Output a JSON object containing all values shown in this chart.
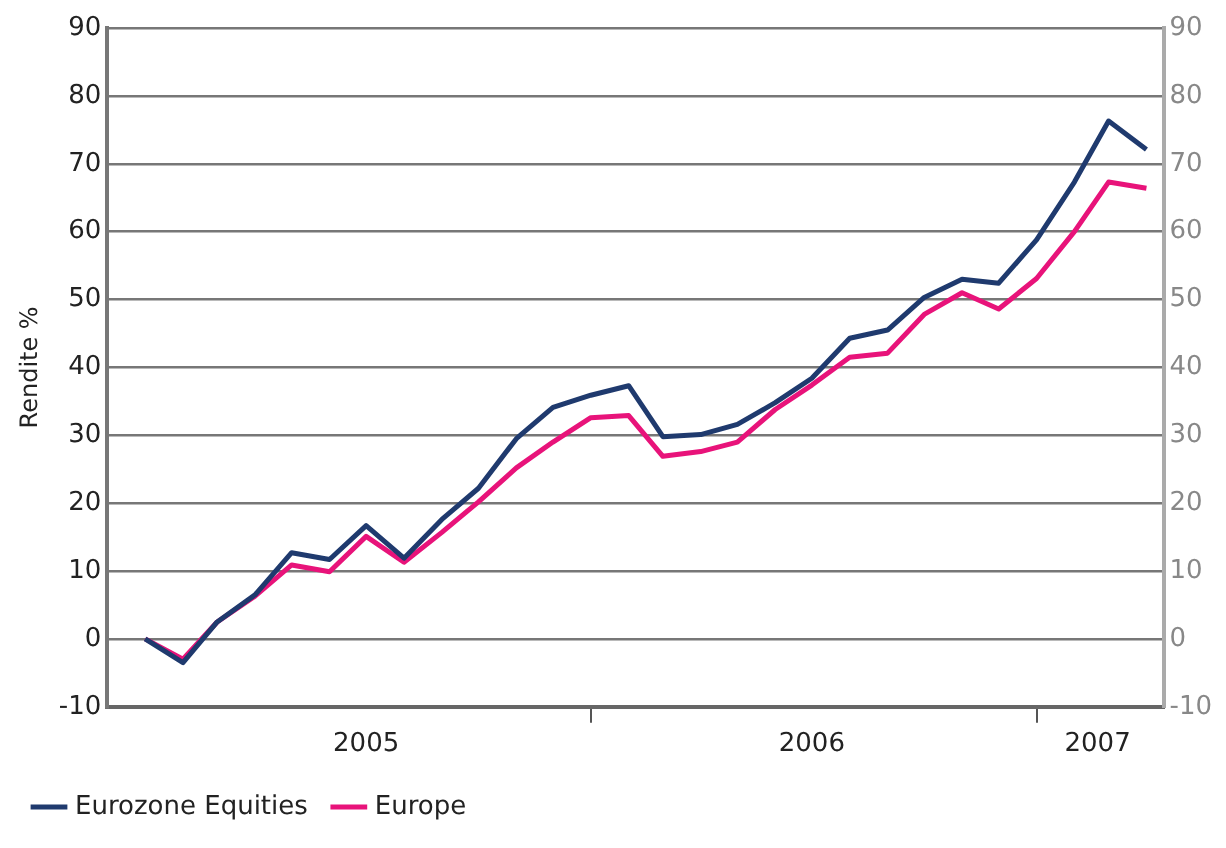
{
  "chart_data": {
    "type": "line",
    "ylabel": "Rendite %",
    "x": [
      "2005-01",
      "2005-02",
      "2005-03",
      "2005-04",
      "2005-05",
      "2005-06",
      "2005-07",
      "2005-08",
      "2005-09",
      "2005-10",
      "2005-11",
      "2005-12",
      "2006-01",
      "2006-02",
      "2006-03",
      "2006-04",
      "2006-05",
      "2006-06",
      "2006-07",
      "2006-08",
      "2006-09",
      "2006-10",
      "2006-11",
      "2006-12",
      "2007-01",
      "2007-02",
      "2007-03",
      "2007-04"
    ],
    "xlim": [
      "2004-12-01",
      "2007-04-15"
    ],
    "xticks": [
      {
        "value": "2006-01",
        "label": null
      },
      {
        "value": "2007-01",
        "label": null
      },
      {
        "value": "2005-07",
        "label": "2005"
      },
      {
        "value": "2006-07",
        "label": "2006"
      },
      {
        "value": "2007-02-20",
        "label": "2007"
      }
    ],
    "series": [
      {
        "name": "Eurozone Equities",
        "color": "#1f3a6e",
        "values": [
          0,
          -3.5,
          2.5,
          6.5,
          12.7,
          11.7,
          16.7,
          11.9,
          17.6,
          22.2,
          29.5,
          34.1,
          35.9,
          37.3,
          29.8,
          30.1,
          31.6,
          34.8,
          38.4,
          44.3,
          45.5,
          50.3,
          53,
          52.4,
          58.8,
          67.3,
          76.3,
          72.1
        ]
      },
      {
        "name": "Europe",
        "color": "#e8137a",
        "values": [
          0,
          -3,
          2.5,
          6.3,
          10.9,
          9.9,
          15.1,
          11.3,
          15.7,
          20.2,
          25.2,
          29,
          32.6,
          32.9,
          26.9,
          27.6,
          29,
          33.8,
          37.4,
          41.5,
          42.1,
          47.8,
          51,
          48.6,
          53.1,
          60,
          67.3,
          66.4
        ]
      }
    ],
    "ylim": [
      -10,
      90
    ],
    "yticks": [
      -10,
      0,
      10,
      20,
      30,
      40,
      50,
      60,
      70,
      80,
      90
    ],
    "y2lim": [
      -10,
      90
    ],
    "y2ticks": [
      -10,
      0,
      10,
      20,
      30,
      40,
      50,
      60,
      70,
      80,
      90
    ],
    "grid": "y",
    "legend": "bottom left",
    "marker": "none",
    "line_style": "solid"
  }
}
